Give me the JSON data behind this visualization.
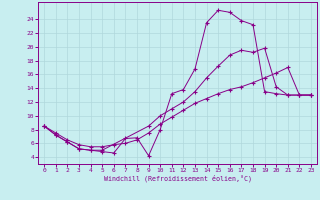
{
  "xlabel": "Windchill (Refroidissement éolien,°C)",
  "bg_color": "#c8eef0",
  "grid_color": "#b0d8dc",
  "line_color": "#880088",
  "x_ticks": [
    0,
    1,
    2,
    3,
    4,
    5,
    6,
    7,
    8,
    9,
    10,
    11,
    12,
    13,
    14,
    15,
    16,
    17,
    18,
    19,
    20,
    21,
    22,
    23
  ],
  "y_ticks": [
    4,
    6,
    8,
    10,
    12,
    14,
    16,
    18,
    20,
    22,
    24
  ],
  "xlim": [
    -0.5,
    23.5
  ],
  "ylim": [
    3.0,
    26.5
  ],
  "line1_x": [
    0,
    1,
    2,
    3,
    4,
    5,
    6,
    7,
    8,
    9,
    10,
    11,
    12,
    13,
    14,
    15,
    16,
    17,
    18,
    19,
    20,
    21,
    22,
    23
  ],
  "line1_y": [
    8.5,
    7.2,
    6.2,
    5.2,
    5.0,
    4.8,
    4.6,
    6.7,
    6.8,
    4.2,
    8.0,
    13.2,
    13.8,
    16.8,
    23.5,
    25.3,
    25.0,
    23.8,
    23.2,
    13.5,
    13.2,
    13.0,
    13.0,
    13.0
  ],
  "line2_x": [
    0,
    1,
    2,
    3,
    4,
    5,
    9,
    10,
    11,
    12,
    13,
    14,
    15,
    16,
    17,
    18,
    19,
    20,
    21,
    22,
    23
  ],
  "line2_y": [
    8.5,
    7.2,
    6.2,
    5.2,
    5.0,
    5.0,
    8.5,
    10.0,
    11.0,
    12.0,
    13.5,
    15.5,
    17.2,
    18.8,
    19.5,
    19.2,
    19.8,
    14.2,
    13.0,
    13.0,
    13.0
  ],
  "line3_x": [
    0,
    1,
    2,
    3,
    4,
    5,
    6,
    7,
    8,
    9,
    10,
    11,
    12,
    13,
    14,
    15,
    16,
    17,
    18,
    19,
    20,
    21,
    22,
    23
  ],
  "line3_y": [
    8.5,
    7.5,
    6.5,
    5.8,
    5.5,
    5.5,
    5.8,
    6.0,
    6.5,
    7.5,
    8.8,
    9.8,
    10.8,
    11.8,
    12.5,
    13.2,
    13.8,
    14.2,
    14.8,
    15.5,
    16.2,
    17.0,
    13.0,
    13.0
  ]
}
